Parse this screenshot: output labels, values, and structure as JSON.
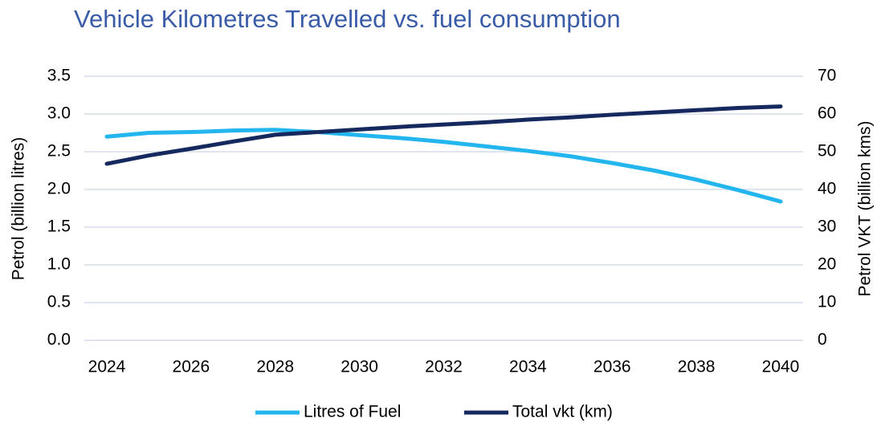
{
  "chart_data": {
    "type": "line",
    "title": "Vehicle Kilometres Travelled vs. fuel consumption",
    "ylabel": "Petrol (billion litres)",
    "y2label": "Petrol VKT (billion kms)",
    "x": [
      2024,
      2025,
      2026,
      2027,
      2028,
      2029,
      2030,
      2031,
      2032,
      2033,
      2034,
      2035,
      2036,
      2037,
      2038,
      2039,
      2040
    ],
    "xlim": [
      2024,
      2040
    ],
    "xticks": [
      2024,
      2026,
      2028,
      2030,
      2032,
      2034,
      2036,
      2038,
      2040
    ],
    "ylim": [
      0,
      3.5
    ],
    "yticks": [
      {
        "value": 0,
        "label": "0.0"
      },
      0.5,
      {
        "value": 1,
        "label": "1.0"
      },
      1.5,
      {
        "value": 2,
        "label": "2.0"
      },
      2.5,
      {
        "value": 3,
        "label": "3.0"
      },
      3.5
    ],
    "y2lim": [
      0,
      70
    ],
    "y2ticks": [
      0,
      10,
      20,
      30,
      40,
      50,
      60,
      70
    ],
    "grid": true,
    "legend": "bottom",
    "series": [
      {
        "name": "Litres of Fuel",
        "color": "#22b5ee",
        "values": [
          2.7,
          2.75,
          2.76,
          2.78,
          2.79,
          2.76,
          2.72,
          2.68,
          2.63,
          2.57,
          2.51,
          2.44,
          2.35,
          2.25,
          2.13,
          1.99,
          1.84
        ]
      },
      {
        "name": "Total vkt (km)",
        "color": "#15295e",
        "axis": "y2",
        "values": [
          46.8,
          49,
          50.8,
          52.7,
          54.5,
          55.2,
          55.9,
          56.6,
          57.2,
          57.8,
          58.5,
          59.1,
          59.8,
          60.4,
          61,
          61.6,
          62
        ]
      }
    ]
  }
}
